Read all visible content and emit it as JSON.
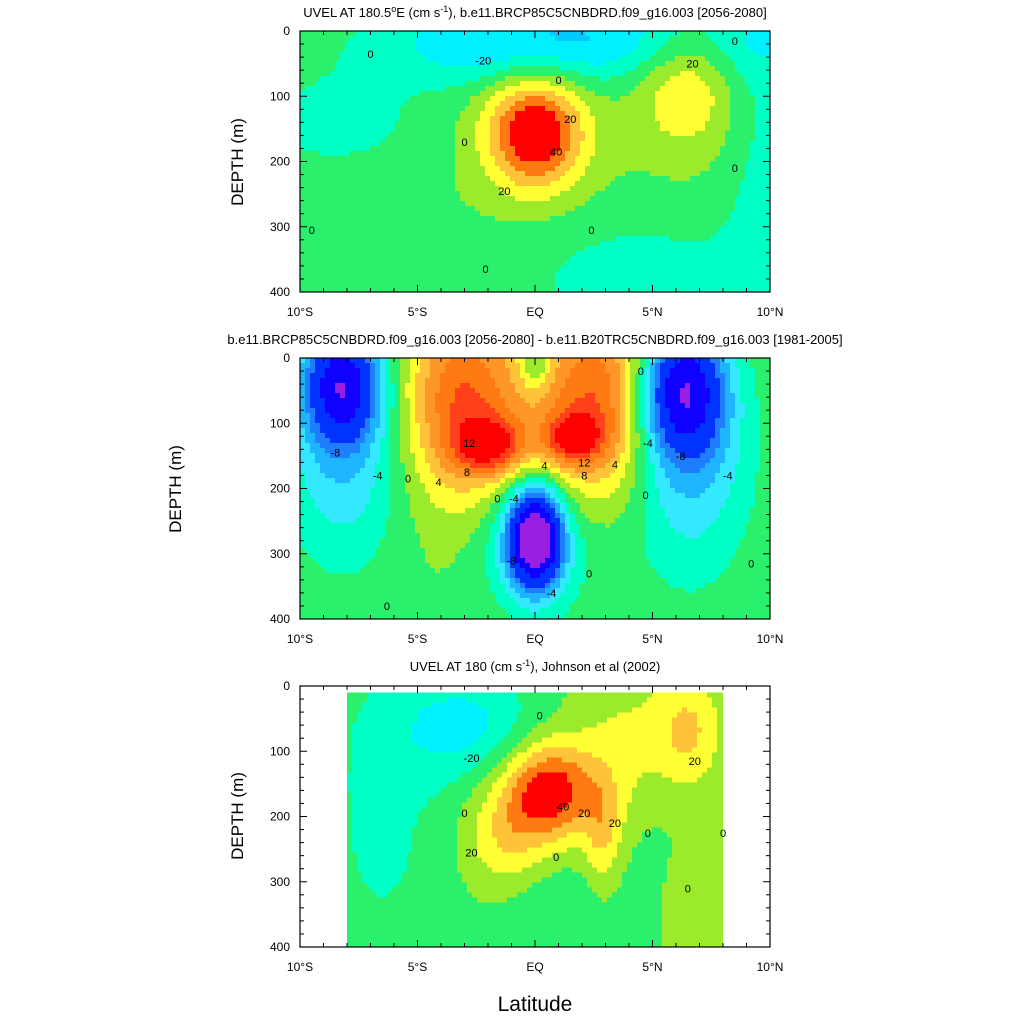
{
  "chart_data": [
    {
      "type": "heatmap",
      "panel_id": "p1",
      "title": "UVEL AT 180.5°E (cm s⁻¹), b.e11.BRCP85C5CNBDRD.f09_g16.003 [2056-2080]",
      "title_parts": {
        "prefix": "UVEL AT 180.5",
        "deg": "o",
        "mid": "E (cm s",
        "sup": "-1",
        "suffix": "), b.e11.BRCP85C5CNBDRD.f09_g16.003 [2056-2080]"
      },
      "ylabel": "DEPTH (m)",
      "xlim": [
        -10,
        10
      ],
      "ylim": [
        400,
        0
      ],
      "x_ticks": [
        -10,
        -5,
        0,
        5,
        10
      ],
      "x_tick_labels": [
        "10°S",
        "5°S",
        "EQ",
        "5°N",
        "10°N"
      ],
      "y_ticks": [
        0,
        100,
        200,
        300,
        400
      ],
      "y_tick_labels": [
        "0",
        "100",
        "200",
        "300",
        "400"
      ],
      "contour_interval": 10,
      "contour_labels": [
        {
          "text": "0",
          "x": -7,
          "y": 35
        },
        {
          "text": "-20",
          "x": -2.2,
          "y": 45
        },
        {
          "text": "0",
          "x": 1.0,
          "y": 75
        },
        {
          "text": "20",
          "x": 1.5,
          "y": 135
        },
        {
          "text": "40",
          "x": 0.9,
          "y": 185
        },
        {
          "text": "20",
          "x": -1.3,
          "y": 245
        },
        {
          "text": "0",
          "x": -3.0,
          "y": 170
        },
        {
          "text": "0",
          "x": -9.5,
          "y": 305
        },
        {
          "text": "0",
          "x": -2.1,
          "y": 365
        },
        {
          "text": "0",
          "x": 2.4,
          "y": 305
        },
        {
          "text": "20",
          "x": 6.7,
          "y": 50
        },
        {
          "text": "0",
          "x": 8.5,
          "y": 15
        },
        {
          "text": "0",
          "x": 8.5,
          "y": 210
        }
      ],
      "features": [
        {
          "kind": "jet",
          "value": 55,
          "x": 0,
          "y": 155,
          "sx": 1.45,
          "sy": 62
        },
        {
          "kind": "eastward",
          "value": 24,
          "x": 6.4,
          "y": 75,
          "sx": 1.5,
          "sy": 70
        },
        {
          "kind": "westward",
          "value": -22,
          "x": -1.5,
          "y": 20,
          "sx": 4.2,
          "sy": 45
        },
        {
          "kind": "westward",
          "value": -20,
          "x": 5.5,
          "y": 5,
          "sx": 6,
          "sy": 55
        },
        {
          "kind": "westward",
          "value": -14,
          "x": 4.5,
          "y": 380,
          "sx": 4.5,
          "sy": 80
        },
        {
          "kind": "westward",
          "value": -14,
          "x": -8.5,
          "y": 140,
          "sx": 3,
          "sy": 60
        },
        {
          "kind": "westward",
          "value": -12,
          "x": 9.7,
          "y": 200,
          "sx": 1.2,
          "sy": 200
        }
      ]
    },
    {
      "type": "heatmap",
      "panel_id": "p2",
      "title": "b.e11.BRCP85C5CNBDRD.f09_g16.003 [2056-2080] - b.e11.B20TRC5CNBDRD.f09_g16.003 [1981-2005]",
      "ylabel": "DEPTH (m)",
      "xlim": [
        -10,
        10
      ],
      "ylim": [
        400,
        0
      ],
      "x_ticks": [
        -10,
        -5,
        0,
        5,
        10
      ],
      "x_tick_labels": [
        "10°S",
        "5°S",
        "EQ",
        "5°N",
        "10°N"
      ],
      "y_ticks": [
        0,
        100,
        200,
        300,
        400
      ],
      "y_tick_labels": [
        "0",
        "100",
        "200",
        "300",
        "400"
      ],
      "contour_interval": 2,
      "contour_labels": [
        {
          "text": "-8",
          "x": -8.5,
          "y": 145
        },
        {
          "text": "-4",
          "x": -6.7,
          "y": 180
        },
        {
          "text": "0",
          "x": -5.4,
          "y": 185
        },
        {
          "text": "4",
          "x": -4.1,
          "y": 190
        },
        {
          "text": "8",
          "x": -2.9,
          "y": 175
        },
        {
          "text": "12",
          "x": -2.8,
          "y": 130
        },
        {
          "text": "12",
          "x": 2.1,
          "y": 160
        },
        {
          "text": "8",
          "x": 2.1,
          "y": 180
        },
        {
          "text": "4",
          "x": 3.4,
          "y": 163
        },
        {
          "text": "4",
          "x": 0.4,
          "y": 165
        },
        {
          "text": "-4",
          "x": -0.9,
          "y": 215
        },
        {
          "text": "0",
          "x": -1.6,
          "y": 215
        },
        {
          "text": "-8",
          "x": -1.0,
          "y": 310
        },
        {
          "text": "-4",
          "x": 0.7,
          "y": 360
        },
        {
          "text": "0",
          "x": 2.3,
          "y": 330
        },
        {
          "text": "0",
          "x": 4.5,
          "y": 20
        },
        {
          "text": "-4",
          "x": 4.8,
          "y": 130
        },
        {
          "text": "-8",
          "x": 6.2,
          "y": 150
        },
        {
          "text": "-4",
          "x": 8.2,
          "y": 180
        },
        {
          "text": "0",
          "x": 4.7,
          "y": 210
        },
        {
          "text": "0",
          "x": 9.2,
          "y": 315
        },
        {
          "text": "0",
          "x": -6.3,
          "y": 380
        }
      ],
      "features": [
        {
          "kind": "eastward",
          "value": 8,
          "x": -3.2,
          "y": 60,
          "sx": 1.6,
          "sy": 110
        },
        {
          "kind": "eastward",
          "value": 8,
          "x": 2.8,
          "y": 60,
          "sx": 1.6,
          "sy": 110
        },
        {
          "kind": "eastward",
          "value": 9,
          "x": -1.9,
          "y": 135,
          "sx": 1.0,
          "sy": 30
        },
        {
          "kind": "eastward",
          "value": 8,
          "x": 1.6,
          "y": 125,
          "sx": 0.9,
          "sy": 28
        },
        {
          "kind": "eastward",
          "value": 3.5,
          "x": 0,
          "y": 80,
          "sx": 3.5,
          "sy": 90
        },
        {
          "kind": "westward",
          "value": -5,
          "x": 0,
          "y": 10,
          "sx": 0.45,
          "sy": 30
        },
        {
          "kind": "westward",
          "value": -21,
          "x": 0,
          "y": 275,
          "sx": 0.75,
          "sy": 50
        },
        {
          "kind": "westward",
          "value": -5,
          "x": 0,
          "y": 290,
          "sx": 1.7,
          "sy": 80
        },
        {
          "kind": "westward",
          "value": -14,
          "x": -8.2,
          "y": 40,
          "sx": 1.1,
          "sy": 60
        },
        {
          "kind": "westward",
          "value": -6,
          "x": -8.2,
          "y": 140,
          "sx": 1.8,
          "sy": 130
        },
        {
          "kind": "westward",
          "value": -15,
          "x": 6.3,
          "y": 50,
          "sx": 1.2,
          "sy": 70
        },
        {
          "kind": "westward",
          "value": -6,
          "x": 6.5,
          "y": 150,
          "sx": 2,
          "sy": 140
        }
      ]
    },
    {
      "type": "heatmap",
      "panel_id": "p3",
      "title": "UVEL AT 180 (cm s⁻¹), Johnson et al (2002)",
      "title_parts": {
        "prefix": "UVEL AT 180 (cm s",
        "sup": "-1",
        "suffix": "), Johnson et al (2002)"
      },
      "ylabel": "DEPTH (m)",
      "xlabel": "Latitude",
      "xlim": [
        -10,
        10
      ],
      "ylim": [
        400,
        0
      ],
      "data_x_range": [
        -8,
        8
      ],
      "data_y_range": [
        10,
        400
      ],
      "x_ticks": [
        -10,
        -5,
        0,
        5,
        10
      ],
      "x_tick_labels": [
        "10°S",
        "5°S",
        "EQ",
        "5°N",
        "10°N"
      ],
      "y_ticks": [
        0,
        100,
        200,
        300,
        400
      ],
      "y_tick_labels": [
        "0",
        "100",
        "200",
        "300",
        "400"
      ],
      "contour_interval": 10,
      "contour_labels": [
        {
          "text": "0",
          "x": 0.2,
          "y": 45
        },
        {
          "text": "-20",
          "x": -2.7,
          "y": 110
        },
        {
          "text": "0",
          "x": -3.0,
          "y": 195
        },
        {
          "text": "20",
          "x": -2.7,
          "y": 255
        },
        {
          "text": "40",
          "x": 1.2,
          "y": 185
        },
        {
          "text": "20",
          "x": 2.1,
          "y": 195
        },
        {
          "text": "20",
          "x": 3.4,
          "y": 210
        },
        {
          "text": "0",
          "x": 0.9,
          "y": 262
        },
        {
          "text": "20",
          "x": 6.8,
          "y": 115
        },
        {
          "text": "0",
          "x": 4.8,
          "y": 225
        },
        {
          "text": "0",
          "x": 8.0,
          "y": 225
        },
        {
          "text": "0",
          "x": 6.5,
          "y": 310
        }
      ],
      "features": [
        {
          "kind": "jet",
          "value": 48,
          "x": 0.6,
          "y": 160,
          "sx": 1.4,
          "sy": 55
        },
        {
          "kind": "eastward",
          "value": 20,
          "x": -1.2,
          "y": 240,
          "sx": 1.3,
          "sy": 60
        },
        {
          "kind": "eastward",
          "value": 18,
          "x": 2.9,
          "y": 230,
          "sx": 0.55,
          "sy": 60
        },
        {
          "kind": "eastward",
          "value": 22,
          "x": 6.5,
          "y": 70,
          "sx": 1.0,
          "sy": 60
        },
        {
          "kind": "eastward",
          "value": 12,
          "x": 3.8,
          "y": 110,
          "sx": 1.4,
          "sy": 110
        },
        {
          "kind": "eastward",
          "value": 10,
          "x": 6.8,
          "y": 340,
          "sx": 1.4,
          "sy": 70
        },
        {
          "kind": "westward",
          "value": -22,
          "x": -2.8,
          "y": 60,
          "sx": 2.2,
          "sy": 60
        },
        {
          "kind": "westward",
          "value": -10,
          "x": 0.5,
          "y": 340,
          "sx": 1.8,
          "sy": 80
        },
        {
          "kind": "westward",
          "value": -12,
          "x": -6.5,
          "y": 200,
          "sx": 2.2,
          "sy": 200
        },
        {
          "kind": "westward",
          "value": -8,
          "x": 4.8,
          "y": 290,
          "sx": 1.2,
          "sy": 110
        }
      ]
    }
  ],
  "colors": {
    "scale": [
      {
        "min": 40,
        "color": "#ff0000"
      },
      {
        "min": 30,
        "color": "#ff7a10"
      },
      {
        "min": 20,
        "color": "#ffc33a"
      },
      {
        "min": 10,
        "color": "#ffff33"
      },
      {
        "min": 0,
        "color": "#9bea2c"
      },
      {
        "min": -10,
        "color": "#2bf06b"
      },
      {
        "min": -20,
        "color": "#00ffc4"
      },
      {
        "min": -30,
        "color": "#00f0ff"
      },
      {
        "min": -1000,
        "color": "#00c9ff"
      }
    ],
    "diff_scale": [
      {
        "min": 12,
        "color": "#ff0000"
      },
      {
        "min": 10,
        "color": "#ff4018"
      },
      {
        "min": 8,
        "color": "#ff7a10"
      },
      {
        "min": 6,
        "color": "#ff9628"
      },
      {
        "min": 4,
        "color": "#ffc33a"
      },
      {
        "min": 2,
        "color": "#ffff33"
      },
      {
        "min": 0,
        "color": "#9bea2c"
      },
      {
        "min": -2,
        "color": "#2bf06b"
      },
      {
        "min": -4,
        "color": "#00ffc4"
      },
      {
        "min": -6,
        "color": "#33e8ff"
      },
      {
        "min": -8,
        "color": "#1eb4ff"
      },
      {
        "min": -10,
        "color": "#1e7eff"
      },
      {
        "min": -14,
        "color": "#0033ff"
      },
      {
        "min": -18,
        "color": "#1000ff"
      },
      {
        "min": -1000,
        "color": "#9a1ee0"
      }
    ],
    "line": "#000000"
  }
}
